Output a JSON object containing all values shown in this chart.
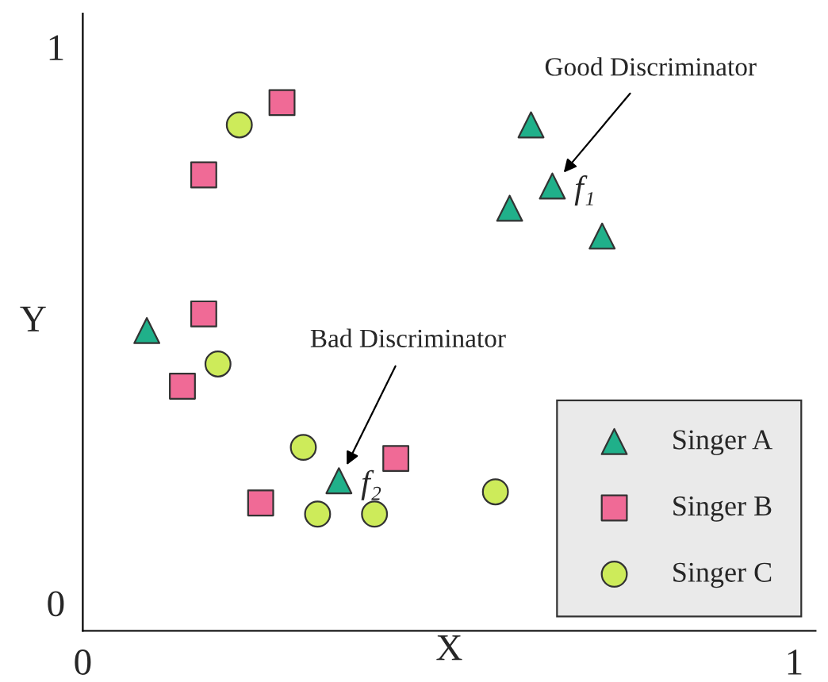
{
  "chart_data": {
    "type": "scatter",
    "xlabel": "X",
    "ylabel": "Y",
    "xlim": [
      0,
      1.03
    ],
    "ylim": [
      -0.05,
      1.06
    ],
    "xticks": [
      0,
      1
    ],
    "yticks": [
      0,
      1
    ],
    "grid": false,
    "legend": "bottom right",
    "series": [
      {
        "name": "Singer A",
        "color": "#20b08a",
        "marker": "triangle",
        "x": [
          0.63,
          0.66,
          0.6,
          0.73,
          0.09,
          0.36
        ],
        "values": [
          0.86,
          0.75,
          0.71,
          0.66,
          0.49,
          0.22
        ]
      },
      {
        "name": "Singer B",
        "color": "#f06a96",
        "marker": "square",
        "x": [
          0.28,
          0.17,
          0.17,
          0.14,
          0.44,
          0.25
        ],
        "values": [
          0.9,
          0.77,
          0.52,
          0.39,
          0.26,
          0.18
        ]
      },
      {
        "name": "Singer C",
        "color": "#cdeb5a",
        "marker": "circle",
        "x": [
          0.22,
          0.19,
          0.31,
          0.33,
          0.41,
          0.58
        ],
        "values": [
          0.86,
          0.43,
          0.28,
          0.16,
          0.16,
          0.2
        ]
      }
    ],
    "annotations": [
      "Good Discriminator",
      {
        "text": "f₁",
        "x": 0.66,
        "y": 0.75
      },
      "Bad Discriminator",
      {
        "text": "f₂",
        "x": 0.36,
        "y": 0.22
      }
    ]
  }
}
